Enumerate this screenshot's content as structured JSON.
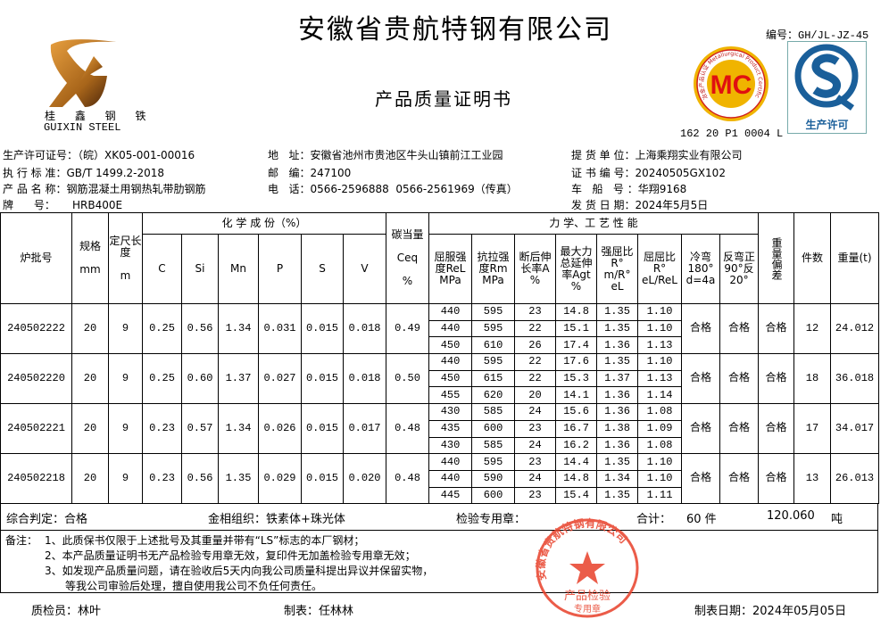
{
  "header": {
    "company": "安徽省贵航特钢有限公司",
    "doc_title": "产品质量证明书",
    "doc_code_label": "编号：",
    "doc_code": "GH/JL-JZ-45",
    "logo_cn": "桂 鑫 钢 铁",
    "logo_en": "GUIXIN  STEEL",
    "mc_logo_text": "MC",
    "mc_ring_text": "冶金产品认证 Metallurgical Product Certification",
    "mc_number": "162 20 P1 0004 L",
    "qs_text": "生产许可"
  },
  "info": {
    "license_label": "生产许可证号：",
    "license": "（皖）XK05-001-00016",
    "standard_label": "执 行 标 准：",
    "standard": "GB/T 1499.2-2018",
    "product_label": "产 品 名 称：",
    "product": "钢筋混凝土用钢热轧带肋钢筋",
    "grade_label": "牌      号：",
    "grade": "HRB400E",
    "address_label": "地   址：",
    "address": "安徽省池州市贵池区牛头山镇前江工业园",
    "postcode_label": "邮   编：",
    "postcode": "247100",
    "phone_label": "电   话：",
    "phone": "0566-2596888  0566-2561969（传真）",
    "consignee_label": "提 货 单 位：",
    "consignee": "上海乘翔实业有限公司",
    "cert_no_label": "证 书 编 号：",
    "cert_no": "20240505GX102",
    "vehicle_label": "车   船   号 ：",
    "vehicle": "华翔9168",
    "ship_date_label": "发 货 日 期：",
    "ship_date": "2024年5月5日"
  },
  "table": {
    "headers": {
      "batch": "炉批号",
      "spec": "规格",
      "spec_unit": "mm",
      "length": "定尺长度",
      "length_unit": "m",
      "chem": "化 学 成 份（%）",
      "C": "C",
      "Si": "Si",
      "Mn": "Mn",
      "P": "P",
      "S": "S",
      "V": "V",
      "ceq": "碳当量",
      "ceq_sym": "Ceq",
      "ceq_unit": "%",
      "mech": "力 学、工 艺 性 能",
      "rel": "屈服强度ReL MPa",
      "rm": "抗拉强度Rm MPa",
      "a": "断后伸长率A %",
      "agt": "最大力总延伸率Agt %",
      "ratio1": "强屈比R° m/R° eL",
      "ratio2": "屈屈比R° eL/ReL",
      "bend": "冷弯180° d=4a",
      "rebend": "反弯正90°反20°",
      "weight_dev": "重量偏差",
      "pieces": "件数",
      "weight": "重量(t)"
    },
    "rows": [
      {
        "batch": "240502222",
        "spec": "20",
        "length": "9",
        "C": "0.25",
        "Si": "0.56",
        "Mn": "1.34",
        "P": "0.031",
        "S": "0.015",
        "V": "0.018",
        "ceq": "0.49",
        "mech": [
          [
            "440",
            "595",
            "23",
            "14.8",
            "1.35",
            "1.10"
          ],
          [
            "440",
            "595",
            "22",
            "15.1",
            "1.35",
            "1.10"
          ],
          [
            "450",
            "610",
            "26",
            "17.4",
            "1.36",
            "1.13"
          ]
        ],
        "bend": "合格",
        "rebend": "合格",
        "weight_dev": "合格",
        "pieces": "12",
        "weight": "24.012"
      },
      {
        "batch": "240502220",
        "spec": "20",
        "length": "9",
        "C": "0.25",
        "Si": "0.60",
        "Mn": "1.37",
        "P": "0.027",
        "S": "0.015",
        "V": "0.018",
        "ceq": "0.50",
        "mech": [
          [
            "440",
            "595",
            "22",
            "17.6",
            "1.35",
            "1.10"
          ],
          [
            "450",
            "615",
            "22",
            "15.3",
            "1.37",
            "1.13"
          ],
          [
            "455",
            "620",
            "20",
            "14.1",
            "1.36",
            "1.14"
          ]
        ],
        "bend": "合格",
        "rebend": "合格",
        "weight_dev": "合格",
        "pieces": "18",
        "weight": "36.018"
      },
      {
        "batch": "240502221",
        "spec": "20",
        "length": "9",
        "C": "0.23",
        "Si": "0.57",
        "Mn": "1.34",
        "P": "0.026",
        "S": "0.015",
        "V": "0.017",
        "ceq": "0.48",
        "mech": [
          [
            "430",
            "585",
            "24",
            "15.6",
            "1.36",
            "1.08"
          ],
          [
            "435",
            "600",
            "23",
            "16.7",
            "1.38",
            "1.09"
          ],
          [
            "430",
            "585",
            "24",
            "16.2",
            "1.36",
            "1.08"
          ]
        ],
        "bend": "合格",
        "rebend": "合格",
        "weight_dev": "合格",
        "pieces": "17",
        "weight": "34.017"
      },
      {
        "batch": "240502218",
        "spec": "20",
        "length": "9",
        "C": "0.23",
        "Si": "0.56",
        "Mn": "1.35",
        "P": "0.029",
        "S": "0.015",
        "V": "0.020",
        "ceq": "0.48",
        "mech": [
          [
            "440",
            "595",
            "23",
            "14.4",
            "1.35",
            "1.10"
          ],
          [
            "440",
            "590",
            "24",
            "14.8",
            "1.34",
            "1.10"
          ],
          [
            "445",
            "600",
            "23",
            "15.4",
            "1.35",
            "1.11"
          ]
        ],
        "bend": "合格",
        "rebend": "合格",
        "weight_dev": "合格",
        "pieces": "13",
        "weight": "26.013"
      }
    ]
  },
  "summary": {
    "judgement": "综合判定：合格",
    "structure": "金相组织：铁素体+珠光体",
    "seal_label": "检验专用章：",
    "total_label": "合计：",
    "total_pieces": "60 件",
    "total_weight": "120.060",
    "weight_unit": "吨"
  },
  "notes": {
    "label": "备注：",
    "items": [
      "1、此质保书仅限于上述批号及其重量并带有“LS”标志的本厂钢材；",
      "2、本产品质量证明书无产品检验专用章无效，复印件无加盖检验专用章无效；",
      "3、如发现产品质量问题，请在验收后5天内向我公司质量科提出异议并保留实物，",
      "等我公司审验后处理，擅自使用我公司不负任何责任。"
    ]
  },
  "stamp": {
    "ring": "安徽省贵航特钢有限公司",
    "center": "产品检验",
    "bottom": "专用章",
    "color": "#e8402a"
  },
  "footer": {
    "inspector": "质检员：林叶",
    "preparer": "制表：任林林",
    "date": "制表日期：2024年05月05日"
  }
}
